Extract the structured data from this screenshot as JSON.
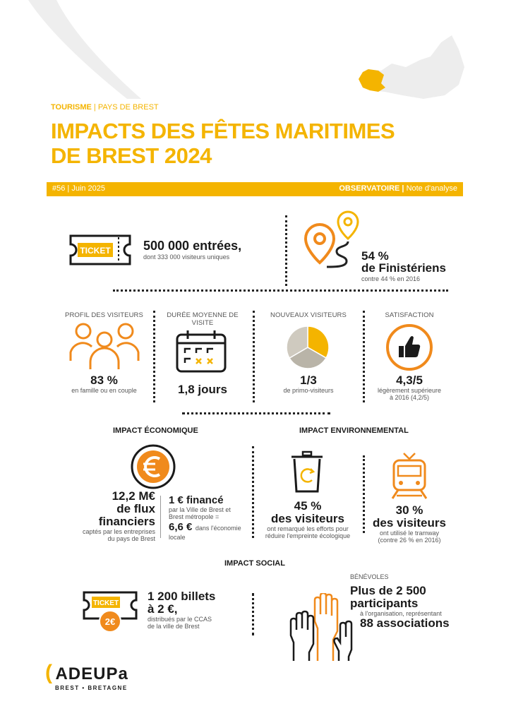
{
  "header": {
    "category_bold": "TOURISME",
    "category_rest": "PAYS DE BREST",
    "title_line1": "IMPACTS DES FÊTES MARITIMES",
    "title_line2": "DE BREST 2024",
    "issue": "#56 | Juin 2025",
    "observatory": "OBSERVATOIRE |",
    "note": "Note d'analyse"
  },
  "entries": {
    "ticket_text": "TICKET",
    "value": "500 000 entrées,",
    "sub": "dont 333 000 visiteurs uniques"
  },
  "finisteriens": {
    "value": "54 %",
    "label": "de Finistériens",
    "sub": "contre 44 % en 2016"
  },
  "profil": {
    "label": "PROFIL DES VISITEURS",
    "value": "83 %",
    "sub": "en famille ou en couple"
  },
  "duree": {
    "label": "DURÉE MOYENNE DE VISITE",
    "value": "1,8 jours"
  },
  "nouveaux": {
    "label": "NOUVEAUX VISITEURS",
    "value": "1/3",
    "sub": "de primo-visiteurs",
    "share": 0.333
  },
  "satisfaction": {
    "label": "SATISFACTION",
    "value": "4,3/5",
    "sub1": "légèrement supérieure",
    "sub2": "à 2016 (4,2/5)"
  },
  "economique": {
    "title": "IMPACT ÉCONOMIQUE",
    "flux_value1": "12,2 M€",
    "flux_value2": "de flux",
    "flux_value3": "financiers",
    "flux_sub1": "captés par les entreprises",
    "flux_sub2": "du pays de Brest",
    "finance_value": "1 € financé",
    "finance_sub1": "par la Ville de Brest et",
    "finance_sub2": "Brest métropole =",
    "finance_value2": "6,6 €",
    "finance_sub3": "dans l'économie",
    "finance_sub4": "locale"
  },
  "environnemental": {
    "title": "IMPACT ENVIRONNEMENTAL",
    "efforts_value": "45 %",
    "efforts_label": "des visiteurs",
    "efforts_sub1": "ont remarqué les efforts pour",
    "efforts_sub2": "réduire l'empreinte écologique",
    "tram_value": "30 %",
    "tram_label": "des visiteurs",
    "tram_sub1": "ont utilisé le tramway",
    "tram_sub2": "(contre 26 % en 2016)"
  },
  "social": {
    "title": "IMPACT SOCIAL",
    "ticket_text": "TICKET",
    "ticket_price": "2€",
    "billets_value1": "1 200 billets",
    "billets_value2": "à 2 €,",
    "billets_sub1": "distribués par le CCAS",
    "billets_sub2": "de la ville de Brest",
    "benevoles_label": "BÉNÉVOLES",
    "participants1": "Plus de 2 500",
    "participants2": "participants",
    "participants_sub1": "à l'organisation, représentant",
    "associations": "88 associations"
  },
  "logo": {
    "name": "ADEUPa",
    "sub": "BREST • BRETAGNE"
  },
  "colors": {
    "yellow": "#f4b400",
    "orange": "#f08a1c",
    "grey": "#cfcabf",
    "dark": "#1a1a1a"
  }
}
